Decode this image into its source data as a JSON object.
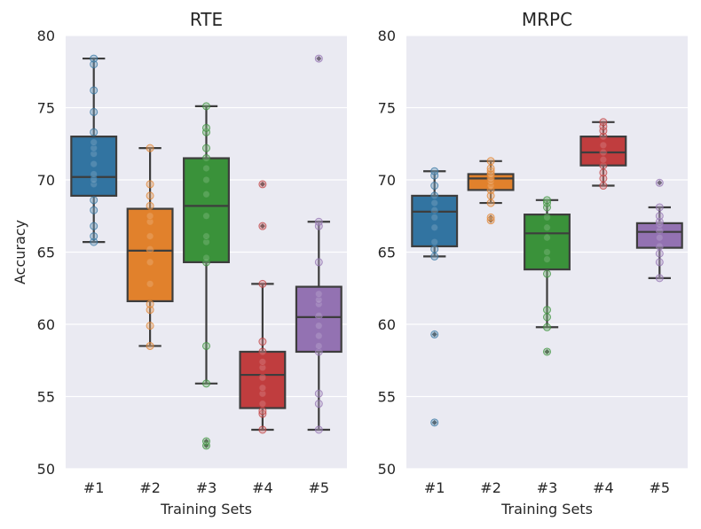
{
  "chart_data": [
    {
      "type": "box",
      "title": "RTE",
      "xlabel": "Training Sets",
      "ylabel": "Accuracy",
      "ylim": [
        50,
        80
      ],
      "yticks": [
        50,
        55,
        60,
        65,
        70,
        75,
        80
      ],
      "grid": true,
      "categories": [
        "#1",
        "#2",
        "#3",
        "#4",
        "#5"
      ],
      "boxes": [
        {
          "category": "#1",
          "whisker_low": 65.7,
          "q1": 68.9,
          "median": 70.2,
          "q3": 73.0,
          "whisker_high": 78.4,
          "outliers": [],
          "points": [
            65.7,
            66.1,
            66.8,
            67.9,
            68.6,
            69.7,
            70.0,
            70.4,
            71.1,
            71.8,
            72.2,
            72.6,
            73.3,
            74.7,
            76.2,
            78.0,
            78.4
          ]
        },
        {
          "category": "#2",
          "whisker_low": 58.5,
          "q1": 61.6,
          "median": 65.1,
          "q3": 68.0,
          "whisker_high": 72.2,
          "outliers": [],
          "points": [
            58.5,
            59.9,
            61.0,
            61.4,
            62.8,
            64.3,
            65.2,
            66.1,
            67.1,
            67.5,
            68.2,
            68.9,
            69.7,
            72.2
          ]
        },
        {
          "category": "#3",
          "whisker_low": 55.9,
          "q1": 64.3,
          "median": 68.2,
          "q3": 71.5,
          "whisker_high": 75.1,
          "outliers": [
            51.6,
            51.9
          ],
          "points": [
            51.6,
            51.9,
            55.9,
            58.5,
            64.3,
            64.6,
            65.7,
            66.1,
            67.5,
            69.0,
            70.0,
            70.8,
            71.5,
            72.2,
            73.3,
            73.6,
            75.1
          ]
        },
        {
          "category": "#4",
          "whisker_low": 52.7,
          "q1": 54.2,
          "median": 56.5,
          "q3": 58.1,
          "whisker_high": 62.8,
          "outliers": [
            66.8,
            69.7
          ],
          "points": [
            52.7,
            53.8,
            54.0,
            54.5,
            55.2,
            55.6,
            56.3,
            57.0,
            57.4,
            58.1,
            58.8,
            62.8,
            66.8,
            69.7
          ]
        },
        {
          "category": "#5",
          "whisker_low": 52.7,
          "q1": 58.1,
          "median": 60.5,
          "q3": 62.6,
          "whisker_high": 67.1,
          "outliers": [
            78.4
          ],
          "points": [
            52.7,
            54.5,
            55.2,
            58.1,
            58.5,
            59.2,
            59.9,
            60.6,
            61.4,
            61.7,
            62.1,
            64.3,
            66.8,
            67.1,
            78.4
          ]
        }
      ]
    },
    {
      "type": "box",
      "title": "MRPC",
      "xlabel": "Training Sets",
      "ylabel": "",
      "ylim": [
        50,
        80
      ],
      "yticks": [
        50,
        55,
        60,
        65,
        70,
        75,
        80
      ],
      "grid": true,
      "categories": [
        "#1",
        "#2",
        "#3",
        "#4",
        "#5"
      ],
      "boxes": [
        {
          "category": "#1",
          "whisker_low": 64.7,
          "q1": 65.4,
          "median": 67.8,
          "q3": 68.9,
          "whisker_high": 70.6,
          "outliers": [
            53.2,
            59.3
          ],
          "points": [
            53.2,
            59.3,
            64.7,
            65.2,
            65.7,
            66.7,
            67.4,
            67.9,
            68.4,
            68.9,
            69.6,
            70.3,
            70.6
          ]
        },
        {
          "category": "#2",
          "whisker_low": 68.4,
          "q1": 69.3,
          "median": 70.1,
          "q3": 70.4,
          "whisker_high": 71.3,
          "outliers": [
            67.2,
            67.4
          ],
          "points": [
            67.2,
            67.4,
            68.4,
            68.9,
            69.3,
            69.6,
            69.9,
            70.1,
            70.3,
            70.4,
            70.6,
            70.8,
            71.3
          ]
        },
        {
          "category": "#3",
          "whisker_low": 59.8,
          "q1": 63.8,
          "median": 66.3,
          "q3": 67.6,
          "whisker_high": 68.6,
          "outliers": [
            58.1
          ],
          "points": [
            58.1,
            59.8,
            60.5,
            61.0,
            63.5,
            64.5,
            65.0,
            66.0,
            66.7,
            67.4,
            68.1,
            68.4,
            68.6
          ]
        },
        {
          "category": "#4",
          "whisker_low": 69.6,
          "q1": 71.0,
          "median": 71.9,
          "q3": 73.0,
          "whisker_high": 74.0,
          "outliers": [],
          "points": [
            69.6,
            70.1,
            70.5,
            71.0,
            71.4,
            71.9,
            72.4,
            73.0,
            73.4,
            73.7,
            74.0
          ]
        },
        {
          "category": "#5",
          "whisker_low": 63.2,
          "q1": 65.3,
          "median": 66.4,
          "q3": 67.0,
          "whisker_high": 68.1,
          "outliers": [
            69.8
          ],
          "points": [
            63.2,
            64.3,
            64.9,
            65.4,
            66.0,
            66.5,
            66.9,
            67.1,
            67.5,
            68.1,
            69.8
          ]
        }
      ]
    }
  ],
  "colors": [
    "#3274a1",
    "#e1812c",
    "#3a923a",
    "#c03d3e",
    "#9372b2"
  ],
  "plot_background": "#eaeaf2"
}
